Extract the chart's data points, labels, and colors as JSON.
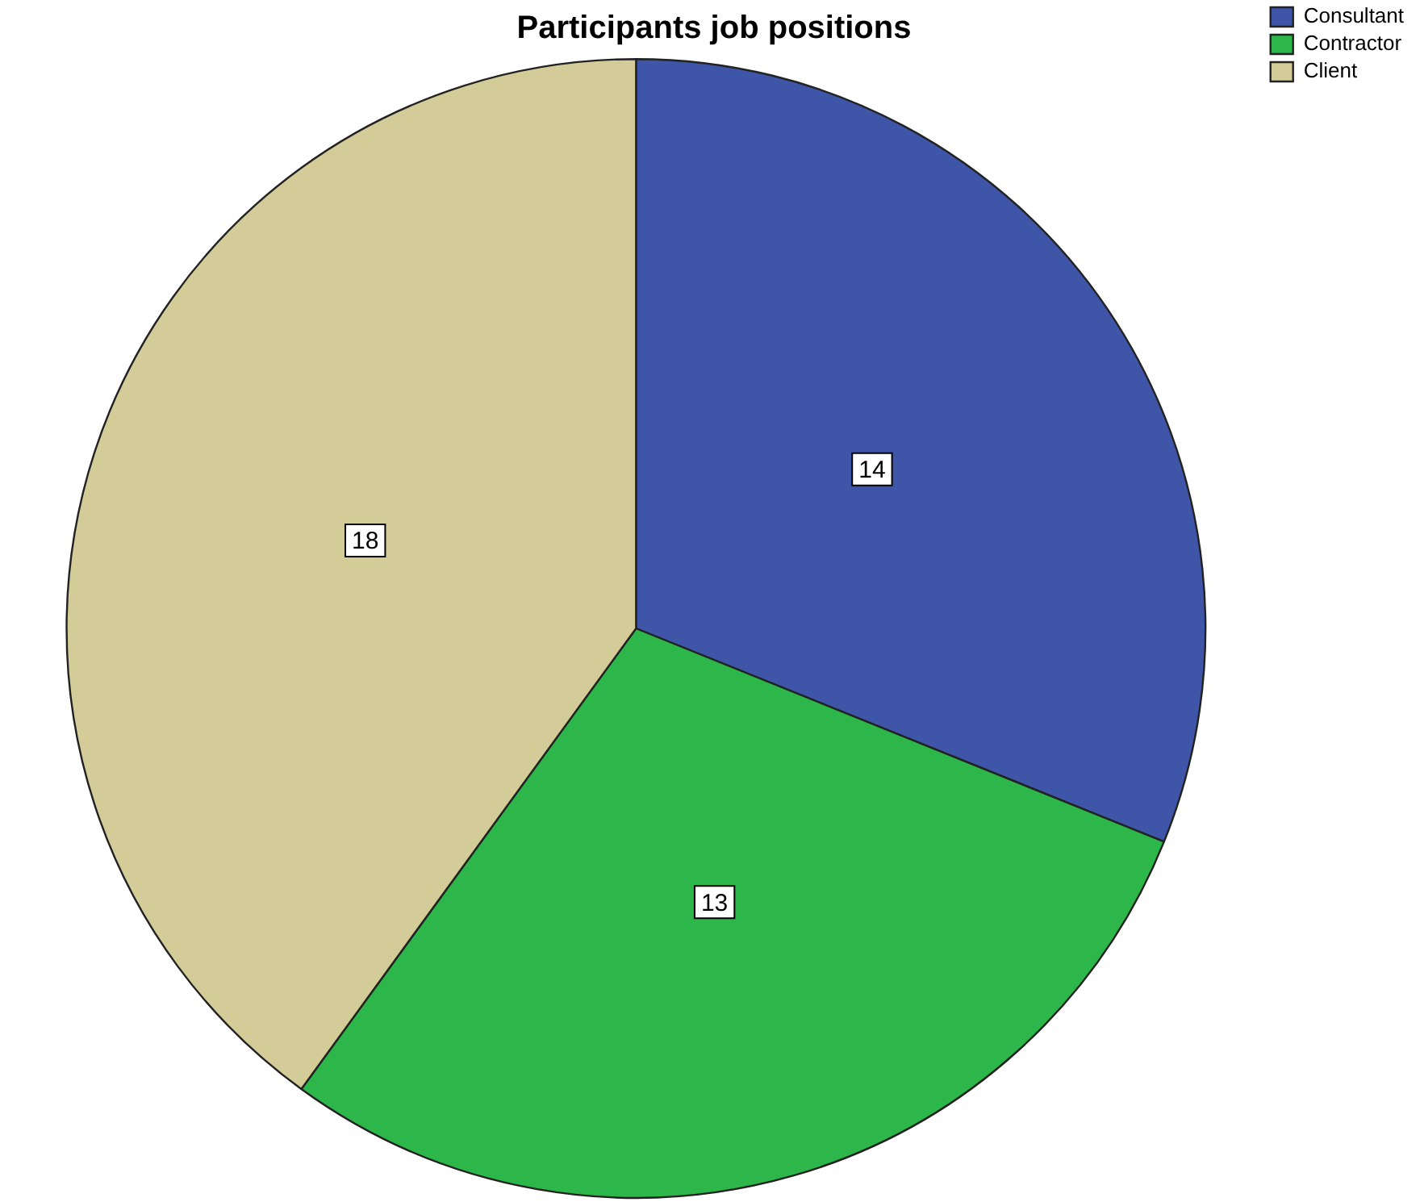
{
  "chart_data": {
    "type": "pie",
    "title": "Participants job positions",
    "categories": [
      "Consultant",
      "Contractor",
      "Client"
    ],
    "values": [
      14,
      13,
      18
    ],
    "colors": [
      "#3f56a8",
      "#2db64a",
      "#d4cc98"
    ],
    "data_labels": true,
    "legend": "top right"
  }
}
